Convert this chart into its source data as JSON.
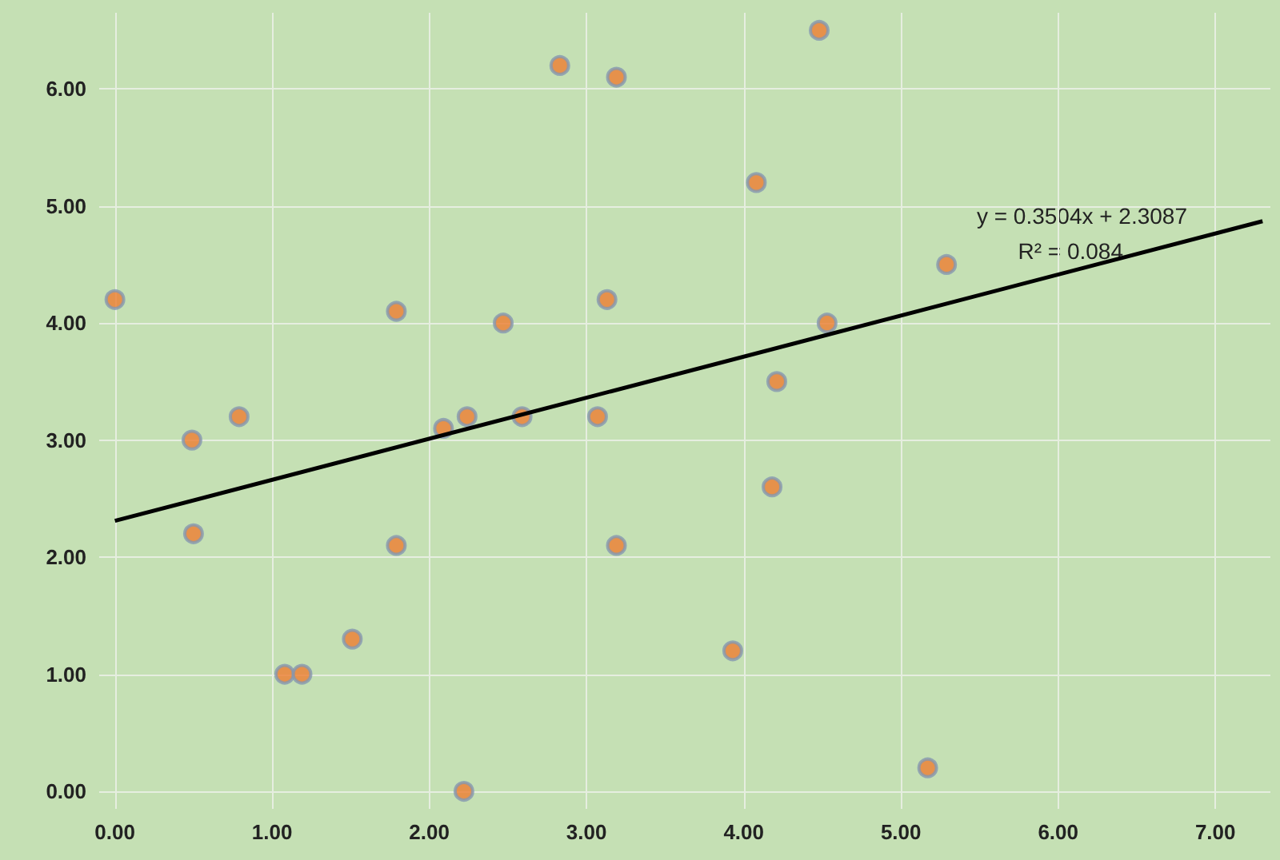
{
  "chart_data": {
    "type": "scatter",
    "grid": true,
    "x": [
      0,
      0.49,
      0.5,
      0.79,
      1.08,
      1.19,
      1.51,
      1.79,
      1.79,
      2.09,
      2.24,
      2.22,
      2.47,
      2.59,
      2.83,
      3.07,
      3.13,
      3.19,
      3.19,
      3.93,
      4.08,
      4.18,
      4.21,
      4.48,
      4.53,
      5.17,
      5.29
    ],
    "series": [
      {
        "color": "#ed7d31",
        "marker": "circle",
        "values": [
          4.2,
          3.0,
          2.2,
          3.2,
          1.0,
          1.0,
          1.3,
          4.1,
          2.1,
          3.1,
          3.2,
          0.0,
          4.0,
          3.2,
          6.2,
          3.2,
          4.2,
          6.1,
          2.1,
          1.2,
          5.2,
          2.6,
          3.5,
          6.5,
          4.0,
          0.2,
          4.5
        ]
      },
      {
        "type": "line",
        "marker": "none",
        "color": "#000000",
        "x": [
          0,
          7.3
        ],
        "values": [
          2.31,
          4.87
        ]
      }
    ],
    "xlim": [
      -0.1,
      7.35
    ],
    "ylim": [
      -0.15,
      6.65
    ],
    "xticks": [
      {
        "value": 0,
        "label": "0.00"
      },
      {
        "value": 1,
        "label": "1.00"
      },
      {
        "value": 2,
        "label": "2.00"
      },
      {
        "value": 3,
        "label": "3.00"
      },
      {
        "value": 4,
        "label": "4.00"
      },
      {
        "value": 5,
        "label": "5.00"
      },
      {
        "value": 6,
        "label": "6.00"
      },
      {
        "value": 7,
        "label": "7.00"
      }
    ],
    "yticks": [
      {
        "value": 0,
        "label": "0.00"
      },
      {
        "value": 1,
        "label": "1.00"
      },
      {
        "value": 2,
        "label": "2.00"
      },
      {
        "value": 3,
        "label": "3.00"
      },
      {
        "value": 4,
        "label": "4.00"
      },
      {
        "value": 5,
        "label": "5.00"
      },
      {
        "value": 6,
        "label": "6.00"
      }
    ],
    "annotations": [
      "y = 0.3504x + 2.3087",
      "R² = 0.084"
    ]
  }
}
